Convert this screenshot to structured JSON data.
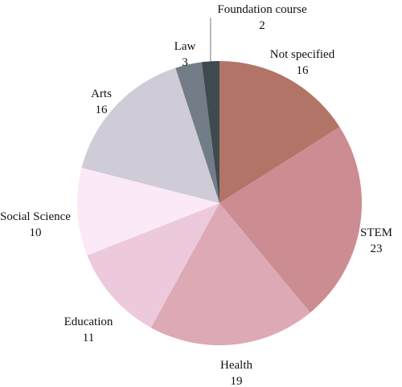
{
  "chart_data": {
    "type": "pie",
    "title": "",
    "start_angle_deg": 0,
    "direction": "clockwise",
    "slices": [
      {
        "label": "Not specified",
        "value": 16,
        "color": "#b37468"
      },
      {
        "label": "STEM",
        "value": 23,
        "color": "#cc8d92"
      },
      {
        "label": "Health",
        "value": 19,
        "color": "#dca9b5"
      },
      {
        "label": "Education",
        "value": 11,
        "color": "#edcadb"
      },
      {
        "label": "Social Science",
        "value": 10,
        "color": "#fbe9f7"
      },
      {
        "label": "Arts",
        "value": 16,
        "color": "#cfccd8"
      },
      {
        "label": "Law",
        "value": 3,
        "color": "#737d87"
      },
      {
        "label": "Foundation course",
        "value": 2,
        "color": "#3e4a50"
      }
    ]
  }
}
